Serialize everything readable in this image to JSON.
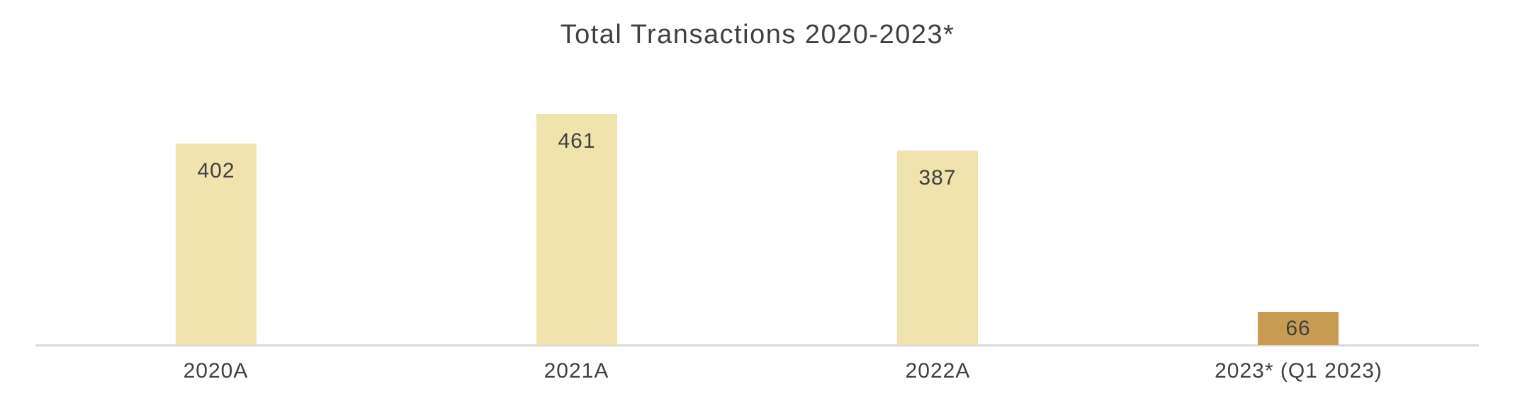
{
  "chart_data": {
    "type": "bar",
    "title": "Total Transactions 2020-2023*",
    "categories": [
      "2020A",
      "2021A",
      "2022A",
      "2023* (Q1 2023)"
    ],
    "values": [
      402,
      461,
      387,
      66
    ],
    "series": [
      {
        "name": "Total Transactions",
        "values": [
          402,
          461,
          387,
          66
        ]
      }
    ],
    "data_labels": [
      402,
      461,
      387,
      66
    ],
    "data_label_position": "inside-end",
    "xlabel": "",
    "ylabel": "",
    "ylim": [
      0,
      500
    ],
    "grid": false,
    "legend": false,
    "colors": {
      "bar_fill": [
        "#F0E3AD",
        "#F0E3AD",
        "#F0E3AD",
        "#C79B51"
      ],
      "axis_line": "#D9D9D9",
      "text": "#404040",
      "background": "#FFFFFF"
    }
  }
}
